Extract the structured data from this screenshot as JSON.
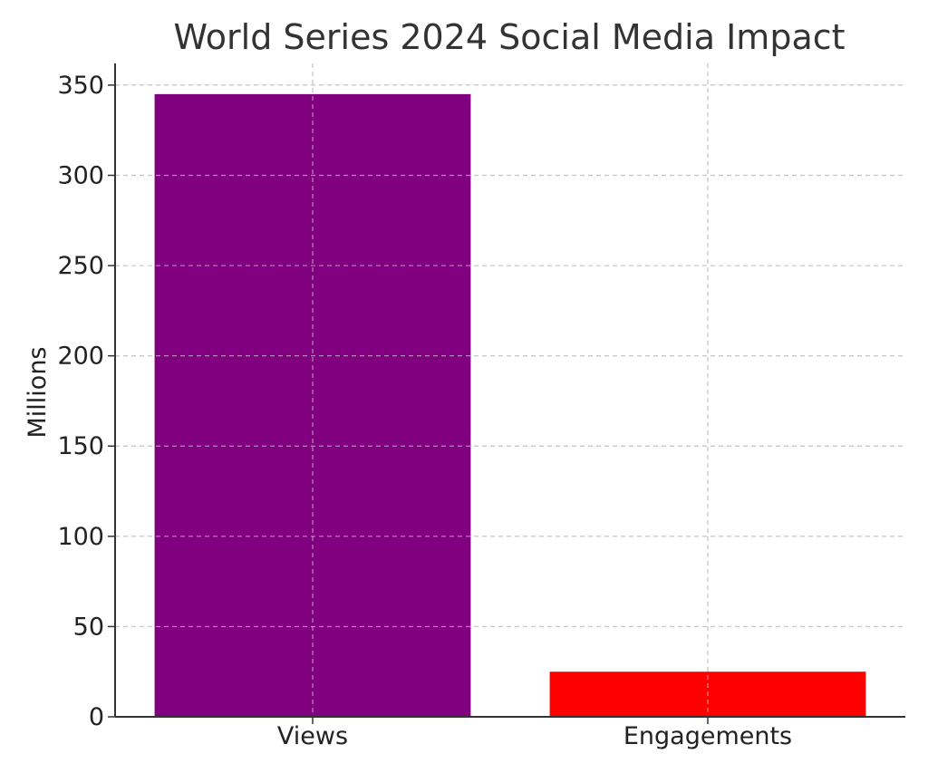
{
  "chart_data": {
    "type": "bar",
    "title": "World Series 2024 Social Media Impact",
    "xlabel": "",
    "ylabel": "Millions",
    "categories": [
      "Views",
      "Engagements"
    ],
    "values": [
      345,
      25
    ],
    "ylim": [
      0,
      362
    ],
    "yticks": [
      0,
      50,
      100,
      150,
      200,
      250,
      300,
      350
    ],
    "grid": true,
    "grid_style": "dashed",
    "legend": "none",
    "colors": [
      "#800080",
      "#ff0000"
    ]
  }
}
